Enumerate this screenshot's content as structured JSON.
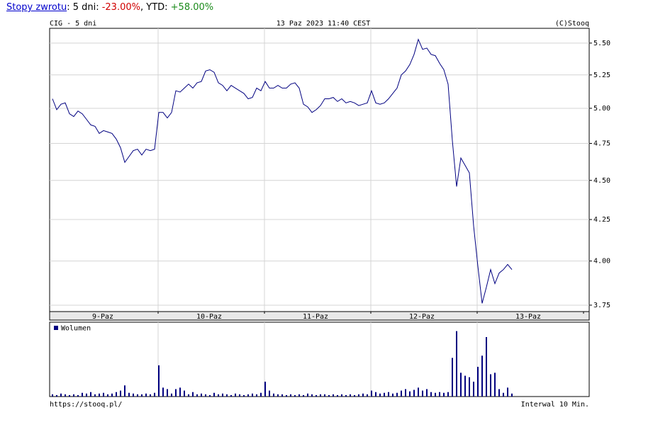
{
  "header": {
    "link": "Stopy zwrotu",
    "parts": [
      ": 5 dni: ",
      "-23.00%",
      ", YTD: ",
      "+58.00%"
    ]
  },
  "chart_data": [
    {
      "type": "line",
      "title": "CIG - 5 dni",
      "subtitle": "13 Paz 2023 11:40 CEST",
      "source": "(C)Stooq",
      "x_labels": [
        "9-Paz",
        "10-Paz",
        "11-Paz",
        "12-Paz",
        "13-Paz"
      ],
      "color": "#000080",
      "log_scale": true,
      "grid": true,
      "ylim": [
        3.715,
        5.62
      ],
      "yticks": [
        {
          "value": 3.75,
          "label": "3.75"
        },
        {
          "value": 4,
          "label": "4.00"
        },
        {
          "value": 4.25,
          "label": "4.25"
        },
        {
          "value": 4.5,
          "label": "4.50"
        },
        {
          "value": 4.75,
          "label": "4.75"
        },
        {
          "value": 5,
          "label": "5.00"
        },
        {
          "value": 5.25,
          "label": "5.25"
        },
        {
          "value": 5.5,
          "label": "5.50"
        }
      ],
      "values": [
        5.07,
        4.99,
        5.03,
        5.04,
        4.96,
        4.94,
        4.98,
        4.96,
        4.92,
        4.88,
        4.87,
        4.82,
        4.84,
        4.83,
        4.82,
        4.78,
        4.72,
        4.62,
        4.66,
        4.7,
        4.71,
        4.67,
        4.71,
        4.7,
        4.71,
        4.97,
        4.97,
        4.93,
        4.97,
        5.13,
        5.12,
        5.15,
        5.18,
        5.15,
        5.19,
        5.2,
        5.28,
        5.29,
        5.27,
        5.19,
        5.17,
        5.13,
        5.17,
        5.15,
        5.13,
        5.11,
        5.07,
        5.08,
        5.15,
        5.13,
        5.2,
        5.15,
        5.15,
        5.17,
        5.15,
        5.15,
        5.18,
        5.19,
        5.15,
        5.03,
        5.01,
        4.97,
        4.99,
        5.02,
        5.07,
        5.07,
        5.08,
        5.05,
        5.07,
        5.04,
        5.05,
        5.04,
        5.02,
        5.03,
        5.04,
        5.13,
        5.04,
        5.03,
        5.04,
        5.07,
        5.11,
        5.15,
        5.25,
        5.28,
        5.33,
        5.41,
        5.53,
        5.45,
        5.46,
        5.41,
        5.4,
        5.34,
        5.29,
        5.18,
        4.77,
        4.46,
        4.65,
        4.6,
        4.55,
        4.21,
        3.97,
        3.76,
        3.85,
        3.95,
        3.87,
        3.93,
        3.95,
        3.98,
        3.95
      ]
    },
    {
      "type": "bar",
      "legend": "Wolumen",
      "color": "#000080",
      "ylim": [
        0,
        100
      ],
      "values": [
        3,
        2,
        4,
        3,
        2,
        3,
        2,
        5,
        4,
        6,
        3,
        4,
        5,
        3,
        4,
        6,
        8,
        15,
        5,
        4,
        3,
        3,
        4,
        3,
        5,
        42,
        12,
        10,
        4,
        10,
        12,
        8,
        3,
        6,
        3,
        4,
        3,
        2,
        5,
        3,
        4,
        3,
        2,
        4,
        3,
        2,
        3,
        4,
        3,
        5,
        20,
        8,
        4,
        3,
        3,
        2,
        3,
        2,
        3,
        2,
        4,
        3,
        2,
        3,
        3,
        2,
        3,
        2,
        3,
        2,
        3,
        2,
        3,
        4,
        3,
        8,
        6,
        4,
        5,
        6,
        4,
        5,
        8,
        10,
        7,
        9,
        12,
        8,
        10,
        6,
        5,
        6,
        5,
        6,
        52,
        88,
        32,
        28,
        26,
        20,
        40,
        55,
        80,
        30,
        32,
        10,
        5,
        12,
        4
      ]
    }
  ],
  "footer": {
    "left": "https://stooq.pl/",
    "right": "Interwal 10 Min."
  }
}
